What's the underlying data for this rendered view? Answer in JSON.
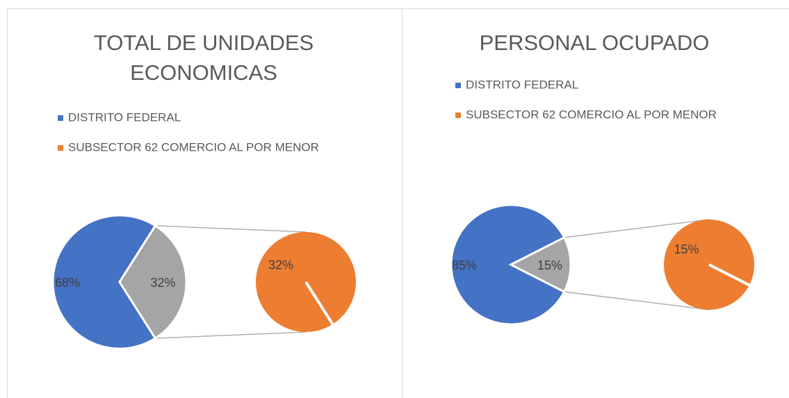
{
  "chart_data": [
    {
      "type": "pie-of-pie",
      "title": "TOTAL DE UNIDADES ECONOMICAS",
      "categories": [
        "DISTRITO FEDERAL",
        "SUBSECTOR 62 COMERCIO AL POR MENOR"
      ],
      "values": [
        68,
        32
      ],
      "value_labels": [
        "68%",
        "32%"
      ],
      "colors": [
        "#4472c4",
        "#ed7d31"
      ],
      "other_color": "#a5a5a5",
      "legend": "top-left"
    },
    {
      "type": "pie-of-pie",
      "title": "PERSONAL OCUPADO",
      "categories": [
        "DISTRITO FEDERAL",
        "SUBSECTOR 62 COMERCIO AL POR MENOR"
      ],
      "values": [
        85,
        15
      ],
      "value_labels": [
        "85%",
        "15%"
      ],
      "colors": [
        "#4472c4",
        "#ed7d31"
      ],
      "other_color": "#a5a5a5",
      "legend": "top-left"
    }
  ]
}
